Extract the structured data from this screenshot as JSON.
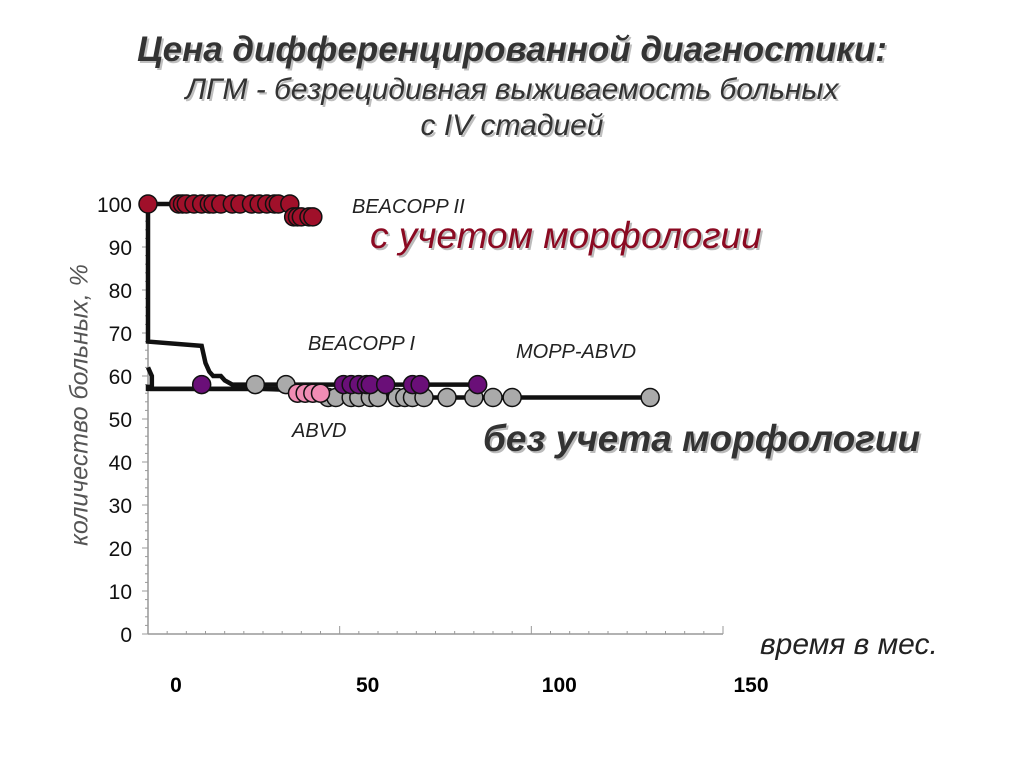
{
  "title": {
    "line1": "Цена дифференцированной диагностики:",
    "line2": "ЛГМ -  безрецидивная выживаемость больных",
    "line3": "с IV стадией"
  },
  "annotations": {
    "with_morphology": "с учетом морфологии",
    "without_morphology": "без учета морфологии"
  },
  "chart_data": {
    "type": "line",
    "xlabel": "время в мес.",
    "ylabel": "количество больных, %",
    "xlim": [
      0,
      150
    ],
    "ylim": [
      0,
      100
    ],
    "x_ticks": [
      0,
      50,
      100,
      150
    ],
    "y_ticks": [
      0,
      10,
      20,
      30,
      40,
      50,
      60,
      70,
      80,
      90,
      100
    ],
    "series": [
      {
        "name": "BEACOPP II",
        "color": "#a0102a",
        "line": [
          [
            0,
            100
          ],
          [
            0,
            100
          ],
          [
            20,
            100
          ],
          [
            30,
            100
          ],
          [
            38,
            100
          ],
          [
            38,
            97
          ],
          [
            44,
            97
          ]
        ],
        "censored": [
          [
            0,
            100
          ],
          [
            8,
            100
          ],
          [
            9,
            100
          ],
          [
            10,
            100
          ],
          [
            12,
            100
          ],
          [
            14,
            100
          ],
          [
            16,
            100
          ],
          [
            17,
            100
          ],
          [
            19,
            100
          ],
          [
            22,
            100
          ],
          [
            24,
            100
          ],
          [
            27,
            100
          ],
          [
            29,
            100
          ],
          [
            31,
            100
          ],
          [
            33,
            100
          ],
          [
            34,
            100
          ],
          [
            37,
            100
          ],
          [
            38,
            97
          ],
          [
            39,
            97
          ],
          [
            40,
            97
          ],
          [
            42,
            97
          ],
          [
            43,
            97
          ]
        ]
      },
      {
        "name": "BEACOPP I",
        "color": "#6a0f78",
        "line": [
          [
            0,
            100
          ],
          [
            0,
            68
          ],
          [
            14,
            67
          ],
          [
            15,
            63
          ],
          [
            16,
            61
          ],
          [
            17,
            60
          ],
          [
            19,
            60
          ],
          [
            20,
            59
          ],
          [
            22,
            58
          ],
          [
            24,
            58
          ],
          [
            50,
            58
          ],
          [
            75,
            58
          ],
          [
            87,
            58
          ]
        ],
        "censored": [
          [
            14,
            58
          ],
          [
            51,
            58
          ],
          [
            53,
            58
          ],
          [
            55,
            58
          ],
          [
            57,
            58
          ],
          [
            58,
            58
          ],
          [
            62,
            58
          ],
          [
            69,
            58
          ],
          [
            71,
            58
          ],
          [
            86,
            58
          ]
        ]
      },
      {
        "name": "ABVD",
        "color": "#f08cb4",
        "line": [
          [
            0,
            62
          ],
          [
            1,
            60
          ],
          [
            1,
            57
          ],
          [
            35,
            57
          ],
          [
            40,
            56
          ],
          [
            46,
            56
          ]
        ],
        "censored": [
          [
            39,
            56
          ],
          [
            41,
            56
          ],
          [
            43,
            56
          ],
          [
            45,
            56
          ]
        ]
      },
      {
        "name": "MOPP-ABVD",
        "color": "#aaaaaa",
        "line": [
          [
            0,
            58
          ],
          [
            0,
            57
          ],
          [
            30,
            57
          ],
          [
            60,
            56
          ],
          [
            64,
            55
          ],
          [
            132,
            55
          ]
        ],
        "censored": [
          [
            28,
            58
          ],
          [
            36,
            58
          ],
          [
            47,
            55
          ],
          [
            49,
            55
          ],
          [
            53,
            55
          ],
          [
            55,
            55
          ],
          [
            58,
            55
          ],
          [
            60,
            55
          ],
          [
            65,
            55
          ],
          [
            67,
            55
          ],
          [
            69,
            55
          ],
          [
            72,
            55
          ],
          [
            78,
            55
          ],
          [
            85,
            55
          ],
          [
            90,
            55
          ],
          [
            95,
            55
          ],
          [
            131,
            55
          ]
        ]
      }
    ]
  }
}
